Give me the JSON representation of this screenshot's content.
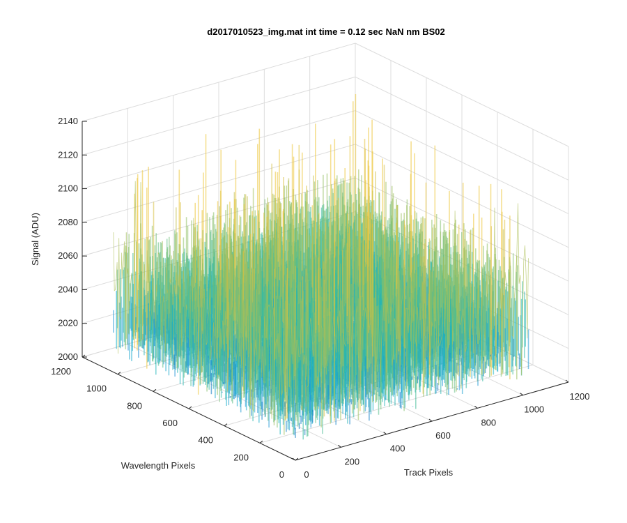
{
  "chart_data": {
    "type": "surface",
    "title": "d2017010523_img.mat int time = 0.12 sec  NaN nm BS02",
    "xlabel": "Track Pixels",
    "ylabel": "Wavelength Pixels",
    "zlabel": "Signal (ADU)",
    "xlim": [
      0,
      1200
    ],
    "ylim": [
      0,
      1200
    ],
    "zlim": [
      2000,
      2140
    ],
    "x_ticks": [
      "0",
      "200",
      "400",
      "600",
      "800",
      "1000",
      "1200"
    ],
    "y_ticks": [
      "0",
      "200",
      "400",
      "600",
      "800",
      "1000",
      "1200"
    ],
    "z_ticks": [
      "2000",
      "2020",
      "2040",
      "2060",
      "2080",
      "2100",
      "2120",
      "2140"
    ],
    "data_extent": {
      "x": [
        0,
        1024
      ],
      "y": [
        0,
        1024
      ]
    },
    "signal_range": {
      "min": 2010,
      "max": 2130,
      "typical": [
        2035,
        2085
      ]
    },
    "colormap": "parula",
    "grid": true,
    "box": "back-walls"
  },
  "colors": {
    "background": "#ffffff",
    "grid": "#dcdcdc",
    "axis": "#262626",
    "colormap_stops": [
      "#0072bd",
      "#1e8fd6",
      "#12b0c8",
      "#3cbb9c",
      "#8cc065",
      "#cdbd46",
      "#edc437"
    ]
  }
}
